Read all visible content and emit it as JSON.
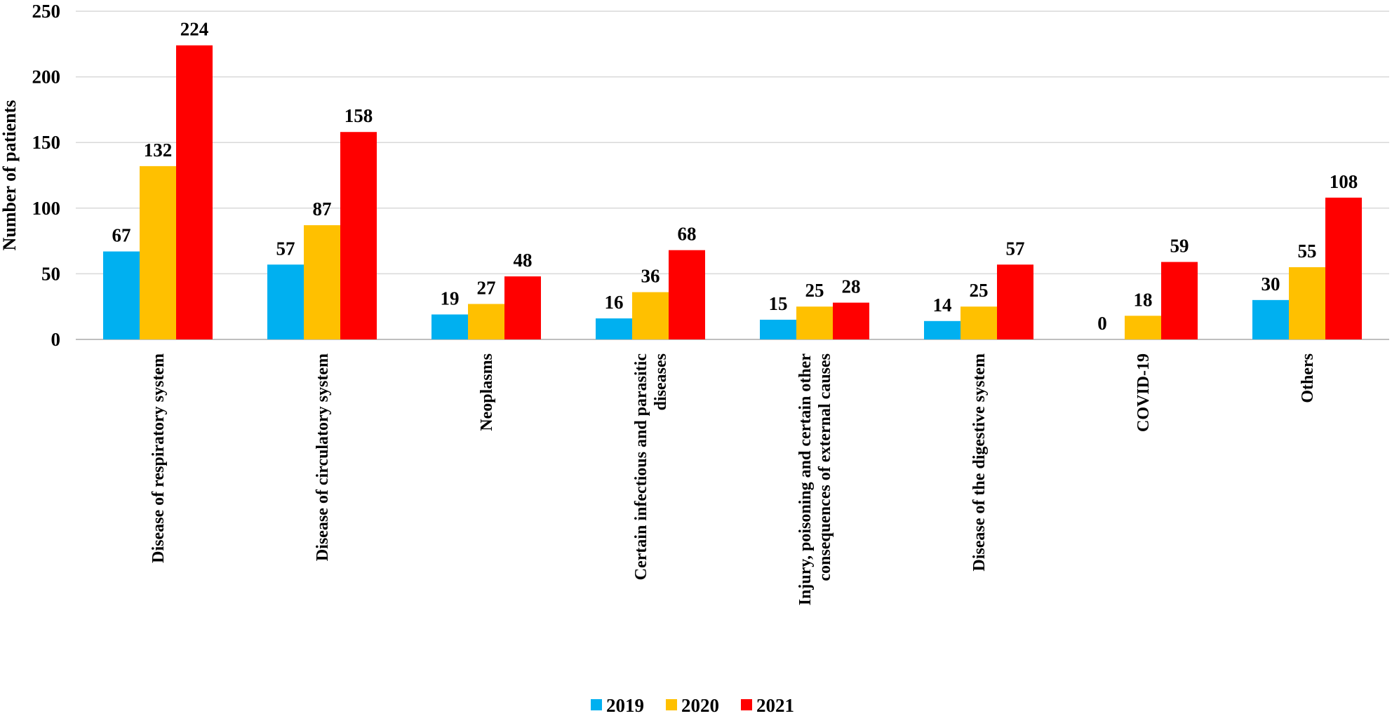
{
  "chart_data": {
    "type": "bar",
    "title": "",
    "xlabel": "",
    "ylabel": "Number of patients",
    "ylim": [
      0,
      250
    ],
    "yticks": [
      0,
      50,
      100,
      150,
      200,
      250
    ],
    "grid": true,
    "legend_position": "bottom",
    "categories": [
      [
        "Disease of respiratory system"
      ],
      [
        "Disease of circulatory system"
      ],
      [
        "Neoplasms"
      ],
      [
        "Certain infectious and parasitic",
        "diseases"
      ],
      [
        "Injury, poisoning and certain other",
        "consequences of external causes"
      ],
      [
        "Disease of the digestive system"
      ],
      [
        "COVID-19"
      ],
      [
        "Others"
      ]
    ],
    "series": [
      {
        "name": "2019",
        "color": "#00B0F0",
        "values": [
          67,
          57,
          19,
          16,
          15,
          14,
          0,
          30
        ]
      },
      {
        "name": "2020",
        "color": "#FFC000",
        "values": [
          132,
          87,
          27,
          36,
          25,
          25,
          18,
          55
        ]
      },
      {
        "name": "2021",
        "color": "#FF0000",
        "values": [
          224,
          158,
          48,
          68,
          28,
          57,
          59,
          108
        ]
      }
    ]
  }
}
